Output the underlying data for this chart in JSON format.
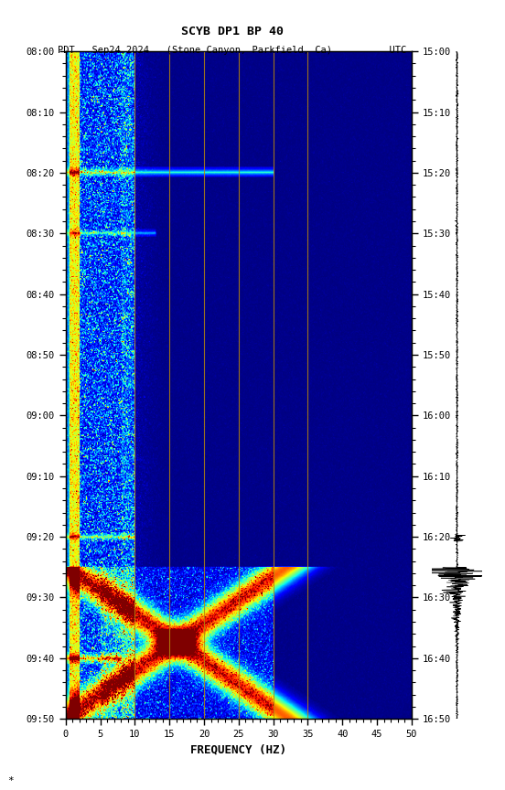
{
  "title_line1": "SCYB DP1 BP 40",
  "title_line2": "PDT   Sep24,2024   (Stone Canyon, Parkfield, Ca)          UTC",
  "xlabel": "FREQUENCY (HZ)",
  "freq_min": 0,
  "freq_max": 50,
  "pdt_ticks": [
    "08:00",
    "08:10",
    "08:20",
    "08:30",
    "08:40",
    "08:50",
    "09:00",
    "09:10",
    "09:20",
    "09:30",
    "09:40",
    "09:50"
  ],
  "utc_ticks": [
    "15:00",
    "15:10",
    "15:20",
    "15:30",
    "15:40",
    "15:50",
    "16:00",
    "16:10",
    "16:20",
    "16:30",
    "16:40",
    "16:50"
  ],
  "freq_ticks": [
    0,
    5,
    10,
    15,
    20,
    25,
    30,
    35,
    40,
    45,
    50
  ],
  "vert_lines_freq": [
    10,
    15,
    20,
    25,
    30,
    35
  ],
  "bg_color": "white",
  "seismic_trace_color": "black"
}
